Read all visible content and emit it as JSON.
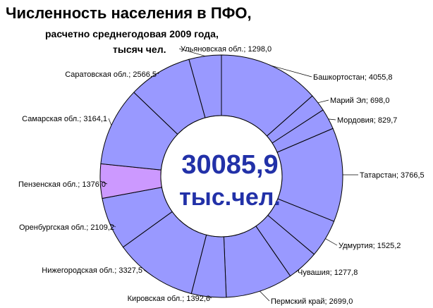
{
  "title": "Численность населения в ПФО,",
  "subtitle": "расчетно среднегодовая  2009 года,",
  "unit_line": "тысяч чел.",
  "center": {
    "total": "30085,9",
    "unit": "тыс.чел."
  },
  "colors": {
    "slice": "#9999ff",
    "highlight": "#cc99ff",
    "edge": "#000000",
    "center_text": "#2231a8"
  },
  "chart_data": {
    "type": "pie",
    "variant": "donut",
    "title": "Численность населения в ПФО,",
    "subtitle": "расчетно среднегодовая  2009 года,",
    "unit": "тысяч чел.",
    "total": 30085.9,
    "slices": [
      {
        "label": "Башкортостан; 4055,8",
        "name": "Башкортостан",
        "value": 4055.8,
        "highlight": false
      },
      {
        "label": "Марий Эл; 698,0",
        "name": "Марий Эл",
        "value": 698.0,
        "highlight": false
      },
      {
        "label": "Мордовия; 829,7",
        "name": "Мордовия",
        "value": 829.7,
        "highlight": false
      },
      {
        "label": "Татарстан; 3766,5",
        "name": "Татарстан",
        "value": 3766.5,
        "highlight": false
      },
      {
        "label": "Удмуртия; 1525,2",
        "name": "Удмуртия",
        "value": 1525.2,
        "highlight": false
      },
      {
        "label": "Чувашия; 1277,8",
        "name": "Чувашия",
        "value": 1277.8,
        "highlight": false
      },
      {
        "label": "Пермский край; 2699,0",
        "name": "Пермский край",
        "value": 2699.0,
        "highlight": false
      },
      {
        "label": "Кировская обл.; 1392,6",
        "name": "Кировская обл.",
        "value": 1392.6,
        "highlight": false
      },
      {
        "label": "Нижегородская обл.; 3327,5",
        "name": "Нижегородская обл.",
        "value": 3327.5,
        "highlight": false
      },
      {
        "label": "Оренбургская обл.; 2109,2",
        "name": "Оренбургская обл.",
        "value": 2109.2,
        "highlight": false
      },
      {
        "label": "Пензенская обл.; 1376,0",
        "name": "Пензенская обл.",
        "value": 1376.0,
        "highlight": true
      },
      {
        "label": "Самарская обл.; 3164,1",
        "name": "Самарская обл.",
        "value": 3164.1,
        "highlight": false
      },
      {
        "label": "Саратовская обл.; 2566,5",
        "name": "Саратовская обл.",
        "value": 2566.5,
        "highlight": false
      },
      {
        "label": "Ульяновская обл.; 1298,0",
        "name": "Ульяновская обл.",
        "value": 1298.0,
        "highlight": false
      }
    ],
    "legend": "none",
    "data_labels": "outside"
  }
}
